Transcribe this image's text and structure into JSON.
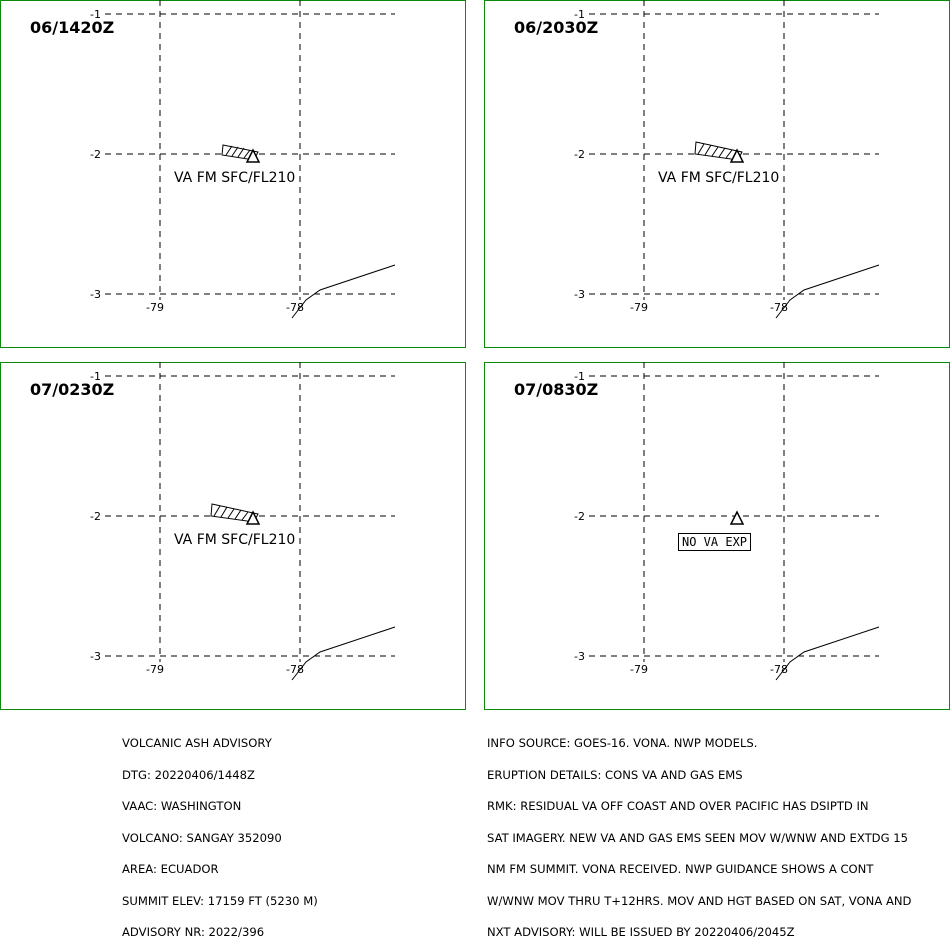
{
  "panels": [
    {
      "valid_time": "06/1420Z",
      "label": "VA FM SFC/FL210",
      "has_ash": true
    },
    {
      "valid_time": "06/2030Z",
      "label": "VA FM SFC/FL210",
      "has_ash": true
    },
    {
      "valid_time": "07/0230Z",
      "label": "VA FM SFC/FL210",
      "has_ash": true
    },
    {
      "valid_time": "07/0830Z",
      "label": "NO VA EXP",
      "has_ash": false
    }
  ],
  "lat_ticks": [
    "-1",
    "-2",
    "-3"
  ],
  "lon_ticks": [
    "-79",
    "-78"
  ],
  "map_symbols": [
    "volcano-icon",
    "ash-cloud-polygon",
    "coastline"
  ],
  "advisory_left": [
    "VOLCANIC ASH ADVISORY",
    "DTG: 20220406/1448Z",
    "VAAC: WASHINGTON",
    "VOLCANO: SANGAY 352090",
    "AREA: ECUADOR",
    "SUMMIT ELEV: 17159 FT (5230 M)",
    "ADVISORY NR: 2022/396"
  ],
  "advisory_right": [
    "INFO SOURCE: GOES-16. VONA. NWP MODELS.",
    "ERUPTION DETAILS: CONS VA AND GAS EMS",
    "RMK: RESIDUAL VA OFF COAST AND OVER PACIFIC HAS DSIPTD IN",
    "SAT IMAGERY. NEW VA AND GAS EMS SEEN MOV W/WNW AND EXTDG 15",
    "NM FM SUMMIT. VONA RECEIVED. NWP GUIDANCE SHOWS A CONT",
    "W/WNW MOV THRU T+12HRS. MOV AND HGT BASED ON SAT, VONA AND",
    "NXT ADVISORY: WILL BE ISSUED BY 20220406/2045Z"
  ],
  "colors": {
    "frame": "#0a8a0a",
    "ink": "#000000",
    "background": "#ffffff"
  }
}
